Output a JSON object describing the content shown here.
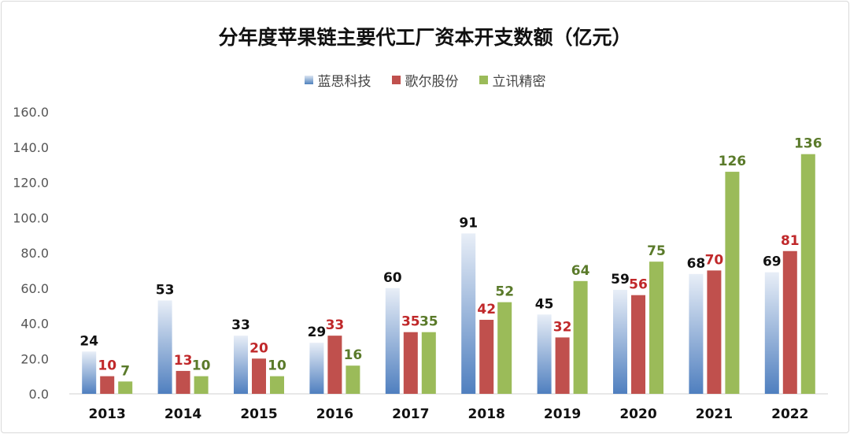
{
  "chart_data": {
    "type": "bar",
    "title": "分年度苹果链主要代工厂资本开支数额（亿元）",
    "categories": [
      "2013",
      "2014",
      "2015",
      "2016",
      "2017",
      "2018",
      "2019",
      "2020",
      "2021",
      "2022"
    ],
    "series": [
      {
        "name": "蓝思科技",
        "values": [
          24,
          53,
          33,
          29,
          60,
          91,
          45,
          59,
          68,
          69
        ],
        "color": "#4f81bd",
        "label_color": "#111111"
      },
      {
        "name": "歌尔股份",
        "values": [
          10,
          13,
          20,
          33,
          35,
          42,
          32,
          56,
          70,
          81
        ],
        "color": "#c0504d",
        "label_color": "#c0282a"
      },
      {
        "name": "立讯精密",
        "values": [
          7,
          10,
          10,
          16,
          35,
          52,
          64,
          75,
          126,
          136
        ],
        "color": "#9bbb59",
        "label_color": "#5a7a2a"
      }
    ],
    "ylim": [
      0,
      160
    ],
    "yticks": [
      "0.0",
      "20.0",
      "40.0",
      "60.0",
      "80.0",
      "100.0",
      "120.0",
      "140.0",
      "160.0"
    ],
    "ytick_values": [
      0,
      20,
      40,
      60,
      80,
      100,
      120,
      140,
      160
    ],
    "xlabel": "",
    "ylabel": "",
    "legend_position": "top-center",
    "grid": false
  }
}
